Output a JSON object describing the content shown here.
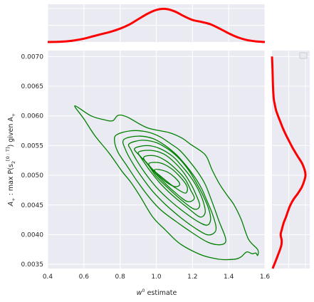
{
  "chart_data": {
    "type": "kde-jointplot",
    "xlabel": "w^0 estimate",
    "xlabel_parts": [
      "w",
      "0",
      " estimate"
    ],
    "ylabel_parts": [
      "A",
      "+",
      " : max P(s",
      "2",
      "[0 : T]",
      ") given A",
      "+"
    ],
    "xlim": [
      0.4,
      1.6
    ],
    "ylim": [
      0.00343,
      0.0071
    ],
    "xticks": [
      "0.4",
      "0.6",
      "0.8",
      "1.0",
      "1.2",
      "1.4",
      "1.6"
    ],
    "yticks": [
      "0.0035",
      "0.0040",
      "0.0045",
      "0.0050",
      "0.0055",
      "0.0060",
      "0.0065",
      "0.0070"
    ],
    "grid": true,
    "legend": "top-right (empty)",
    "joint": {
      "color": "#008000",
      "center": [
        1.02,
        0.00492
      ],
      "contours": [
        {
          "polygon": [
            [
              0.55,
              0.00617
            ],
            [
              0.64,
              0.006
            ],
            [
              0.72,
              0.00593
            ],
            [
              0.76,
              0.00592
            ],
            [
              0.79,
              0.00601
            ],
            [
              0.84,
              0.00598
            ],
            [
              0.95,
              0.0058
            ],
            [
              1.07,
              0.00572
            ],
            [
              1.14,
              0.00563
            ],
            [
              1.19,
              0.00552
            ],
            [
              1.25,
              0.0054
            ],
            [
              1.28,
              0.0053
            ],
            [
              1.31,
              0.00508
            ],
            [
              1.35,
              0.00485
            ],
            [
              1.39,
              0.00467
            ],
            [
              1.43,
              0.0045
            ],
            [
              1.47,
              0.00425
            ],
            [
              1.51,
              0.00392
            ],
            [
              1.56,
              0.00375
            ],
            [
              1.56,
              0.00365
            ],
            [
              1.55,
              0.00369
            ],
            [
              1.53,
              0.00368
            ],
            [
              1.5,
              0.00371
            ],
            [
              1.47,
              0.00363
            ],
            [
              1.44,
              0.00359
            ],
            [
              1.37,
              0.00358
            ],
            [
              1.32,
              0.0036
            ],
            [
              1.24,
              0.00367
            ],
            [
              1.13,
              0.00385
            ],
            [
              1.05,
              0.00408
            ],
            [
              0.98,
              0.0043
            ],
            [
              0.91,
              0.00465
            ],
            [
              0.86,
              0.00488
            ],
            [
              0.81,
              0.00507
            ],
            [
              0.74,
              0.00537
            ],
            [
              0.66,
              0.00567
            ],
            [
              0.6,
              0.00595
            ]
          ]
        },
        {
          "polygon": [
            [
              0.78,
              0.00568
            ],
            [
              0.86,
              0.00575
            ],
            [
              0.95,
              0.00573
            ],
            [
              1.02,
              0.00565
            ],
            [
              1.08,
              0.00553
            ],
            [
              1.13,
              0.00542
            ],
            [
              1.18,
              0.00525
            ],
            [
              1.23,
              0.00505
            ],
            [
              1.27,
              0.00485
            ],
            [
              1.3,
              0.00462
            ],
            [
              1.33,
              0.00437
            ],
            [
              1.35,
              0.0042
            ],
            [
              1.38,
              0.00397
            ],
            [
              1.38,
              0.00386
            ],
            [
              1.34,
              0.00383
            ],
            [
              1.28,
              0.00388
            ],
            [
              1.2,
              0.00403
            ],
            [
              1.11,
              0.00422
            ],
            [
              1.02,
              0.00443
            ],
            [
              0.95,
              0.00467
            ],
            [
              0.89,
              0.00492
            ],
            [
              0.84,
              0.00515
            ],
            [
              0.79,
              0.00538
            ],
            [
              0.77,
              0.00556
            ]
          ]
        },
        {
          "polygon": [
            [
              0.82,
              0.0056
            ],
            [
              0.9,
              0.00566
            ],
            [
              0.98,
              0.00562
            ],
            [
              1.05,
              0.0055
            ],
            [
              1.11,
              0.00535
            ],
            [
              1.16,
              0.00518
            ],
            [
              1.21,
              0.00498
            ],
            [
              1.25,
              0.00478
            ],
            [
              1.28,
              0.00457
            ],
            [
              1.31,
              0.00435
            ],
            [
              1.33,
              0.00413
            ],
            [
              1.32,
              0.00403
            ],
            [
              1.28,
              0.004
            ],
            [
              1.21,
              0.00412
            ],
            [
              1.13,
              0.0043
            ],
            [
              1.05,
              0.00451
            ],
            [
              0.98,
              0.00473
            ],
            [
              0.92,
              0.00497
            ],
            [
              0.87,
              0.0052
            ],
            [
              0.83,
              0.00543
            ]
          ]
        },
        {
          "polygon": [
            [
              0.85,
              0.00553
            ],
            [
              0.92,
              0.00559
            ],
            [
              1.0,
              0.00555
            ],
            [
              1.07,
              0.00543
            ],
            [
              1.13,
              0.00527
            ],
            [
              1.18,
              0.00508
            ],
            [
              1.22,
              0.00488
            ],
            [
              1.26,
              0.00465
            ],
            [
              1.29,
              0.00443
            ],
            [
              1.3,
              0.00425
            ],
            [
              1.28,
              0.00416
            ],
            [
              1.23,
              0.00422
            ],
            [
              1.15,
              0.00439
            ],
            [
              1.07,
              0.00459
            ],
            [
              1.0,
              0.0048
            ],
            [
              0.94,
              0.00503
            ],
            [
              0.89,
              0.00526
            ],
            [
              0.86,
              0.00543
            ]
          ]
        },
        {
          "polygon": [
            [
              0.88,
              0.00545
            ],
            [
              0.95,
              0.0055
            ],
            [
              1.02,
              0.00545
            ],
            [
              1.09,
              0.00532
            ],
            [
              1.14,
              0.00516
            ],
            [
              1.19,
              0.00497
            ],
            [
              1.23,
              0.00477
            ],
            [
              1.26,
              0.00455
            ],
            [
              1.27,
              0.00437
            ],
            [
              1.24,
              0.0043
            ],
            [
              1.17,
              0.00446
            ],
            [
              1.09,
              0.00466
            ],
            [
              1.02,
              0.00487
            ],
            [
              0.96,
              0.0051
            ],
            [
              0.91,
              0.00532
            ]
          ]
        },
        {
          "polygon": [
            [
              0.9,
              0.00538
            ],
            [
              0.97,
              0.00542
            ],
            [
              1.04,
              0.00536
            ],
            [
              1.1,
              0.00522
            ],
            [
              1.15,
              0.00505
            ],
            [
              1.19,
              0.00486
            ],
            [
              1.22,
              0.00467
            ],
            [
              1.24,
              0.00449
            ],
            [
              1.21,
              0.00443
            ],
            [
              1.14,
              0.00458
            ],
            [
              1.07,
              0.00477
            ],
            [
              1.0,
              0.00498
            ],
            [
              0.95,
              0.0052
            ]
          ]
        },
        {
          "polygon": [
            [
              0.93,
              0.0053
            ],
            [
              0.99,
              0.00533
            ],
            [
              1.05,
              0.00525
            ],
            [
              1.11,
              0.0051
            ],
            [
              1.16,
              0.00493
            ],
            [
              1.19,
              0.00475
            ],
            [
              1.21,
              0.00461
            ],
            [
              1.17,
              0.00456
            ],
            [
              1.1,
              0.00472
            ],
            [
              1.03,
              0.00492
            ],
            [
              0.97,
              0.00512
            ]
          ]
        },
        {
          "polygon": [
            [
              0.96,
              0.0052
            ],
            [
              1.02,
              0.00521
            ],
            [
              1.08,
              0.00512
            ],
            [
              1.13,
              0.00498
            ],
            [
              1.17,
              0.00481
            ],
            [
              1.16,
              0.0047
            ],
            [
              1.1,
              0.0048
            ],
            [
              1.03,
              0.00497
            ],
            [
              0.98,
              0.0051
            ]
          ]
        },
        {
          "polygon": [
            [
              0.99,
              0.00509
            ],
            [
              1.05,
              0.00507
            ],
            [
              1.1,
              0.00497
            ],
            [
              1.13,
              0.00485
            ],
            [
              1.1,
              0.00481
            ],
            [
              1.04,
              0.00492
            ]
          ]
        }
      ]
    },
    "marginal_x": {
      "color": "#ff0000",
      "x": [
        0.4,
        0.45,
        0.5,
        0.55,
        0.6,
        0.65,
        0.7,
        0.75,
        0.8,
        0.85,
        0.9,
        0.95,
        1.0,
        1.05,
        1.1,
        1.15,
        1.2,
        1.25,
        1.3,
        1.35,
        1.4,
        1.45,
        1.5,
        1.55,
        1.6
      ],
      "density": [
        0.0,
        0.005,
        0.02,
        0.05,
        0.1,
        0.17,
        0.24,
        0.31,
        0.4,
        0.52,
        0.68,
        0.84,
        0.96,
        0.99,
        0.92,
        0.78,
        0.66,
        0.6,
        0.53,
        0.4,
        0.26,
        0.14,
        0.06,
        0.02,
        0.0
      ]
    },
    "marginal_y": {
      "color": "#ff0000",
      "y": [
        0.00343,
        0.0036,
        0.0038,
        0.0039,
        0.004,
        0.0041,
        0.0042,
        0.0043,
        0.0044,
        0.0045,
        0.0046,
        0.0047,
        0.0048,
        0.0049,
        0.005,
        0.0051,
        0.0052,
        0.0053,
        0.0054,
        0.0055,
        0.0056,
        0.0057,
        0.0058,
        0.0059,
        0.006,
        0.0061,
        0.0062,
        0.0063,
        0.0065,
        0.0068,
        0.007
      ],
      "density": [
        0.02,
        0.14,
        0.27,
        0.29,
        0.26,
        0.3,
        0.35,
        0.42,
        0.48,
        0.55,
        0.65,
        0.78,
        0.89,
        0.96,
        1.0,
        0.97,
        0.9,
        0.79,
        0.68,
        0.58,
        0.49,
        0.4,
        0.32,
        0.25,
        0.18,
        0.12,
        0.08,
        0.05,
        0.03,
        0.015,
        0.0
      ]
    }
  }
}
